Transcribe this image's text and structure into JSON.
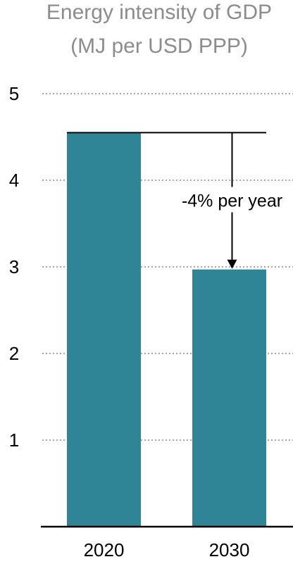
{
  "chart_data": {
    "type": "bar",
    "title": [
      "Energy intensity of GDP",
      "(MJ per USD PPP)"
    ],
    "categories": [
      "2020",
      "2030"
    ],
    "values": [
      4.55,
      2.97
    ],
    "ylim": [
      0,
      5
    ],
    "yticks": [
      1,
      2,
      3,
      4,
      5
    ],
    "grid": true,
    "annotation": {
      "text": "-4% per year"
    },
    "colors": {
      "bar": "#2f8496",
      "grid": "#a6a6a6",
      "title": "#8c8c8c",
      "axis": "#000000"
    }
  }
}
